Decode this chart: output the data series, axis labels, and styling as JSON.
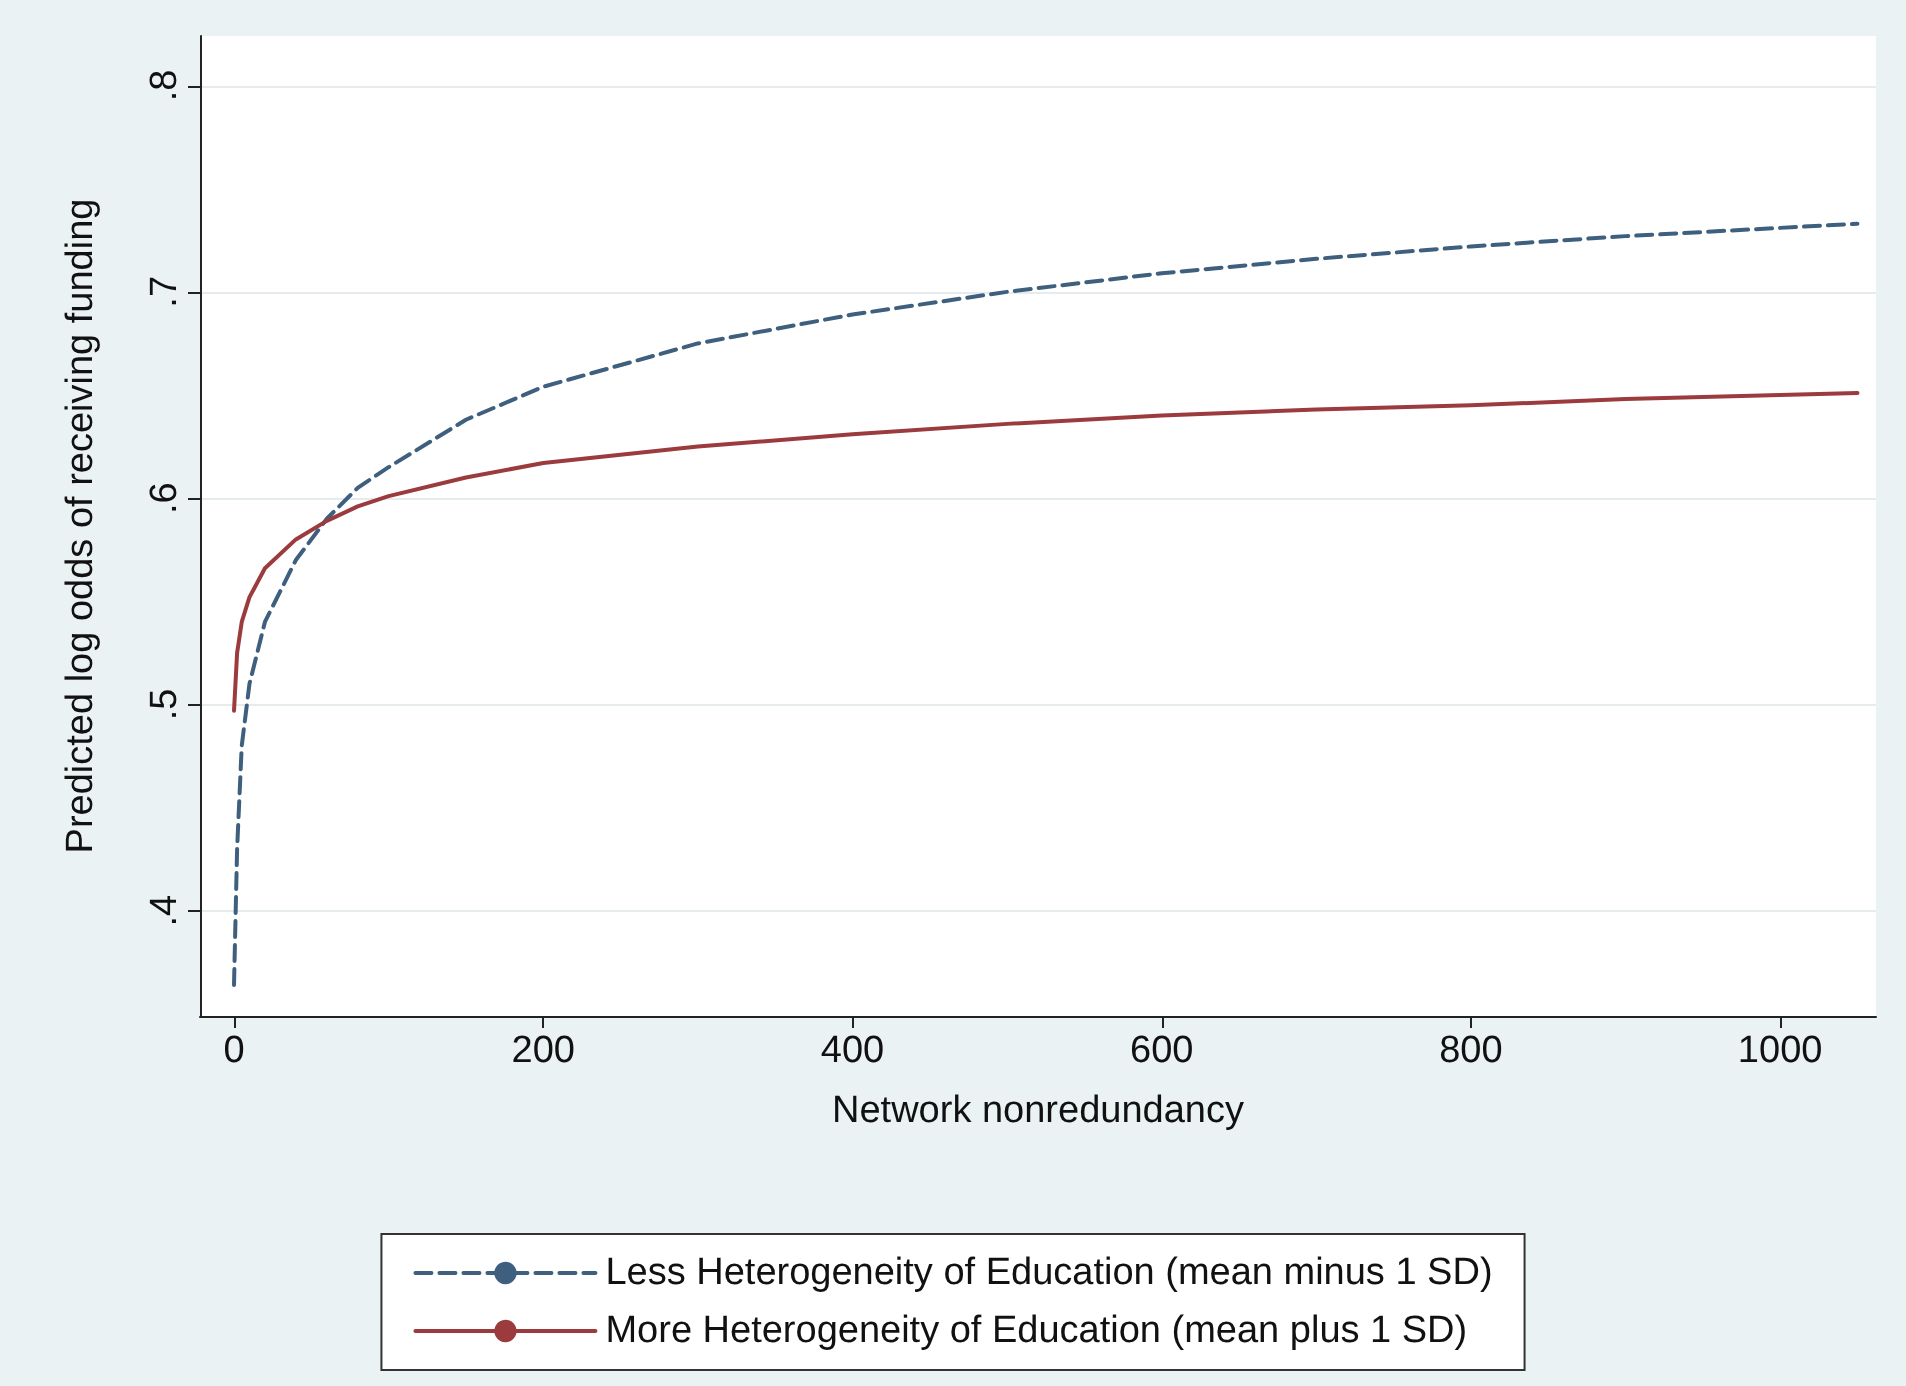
{
  "chart_data": {
    "type": "line",
    "xlabel": "Network nonredundancy",
    "ylabel": "Predicted log odds of receiving funding",
    "xlim": [
      -22,
      1062
    ],
    "ylim": [
      0.349,
      0.824
    ],
    "xticks": [
      0,
      200,
      400,
      600,
      800,
      1000
    ],
    "yticks": [
      {
        "value": 0.4,
        "label": ".4"
      },
      {
        "value": 0.5,
        "label": ".5"
      },
      {
        "value": 0.6,
        "label": ".6"
      },
      {
        "value": 0.7,
        "label": ".7"
      },
      {
        "value": 0.8,
        "label": ".8"
      }
    ],
    "grid": "y",
    "legend": "bottom",
    "marker": "none",
    "series": [
      {
        "name": "Less Heterogeneity of Education (mean minus 1 SD)",
        "color": "#3f5f7f",
        "line_style": "dashed",
        "x": [
          0,
          2,
          5,
          10,
          20,
          40,
          60,
          80,
          100,
          150,
          200,
          300,
          400,
          500,
          600,
          700,
          800,
          900,
          1000,
          1050
        ],
        "values": [
          0.364,
          0.43,
          0.48,
          0.51,
          0.54,
          0.57,
          0.59,
          0.605,
          0.615,
          0.638,
          0.654,
          0.675,
          0.689,
          0.7,
          0.709,
          0.716,
          0.722,
          0.727,
          0.731,
          0.733
        ]
      },
      {
        "name": "More Heterogeneity of Education (mean plus 1 SD)",
        "color": "#9b3b3d",
        "line_style": "solid",
        "x": [
          0,
          2,
          5,
          10,
          20,
          40,
          60,
          80,
          100,
          150,
          200,
          300,
          400,
          500,
          600,
          700,
          800,
          900,
          1000,
          1050
        ],
        "values": [
          0.497,
          0.525,
          0.54,
          0.552,
          0.566,
          0.58,
          0.589,
          0.596,
          0.601,
          0.61,
          0.617,
          0.625,
          0.631,
          0.636,
          0.64,
          0.643,
          0.645,
          0.648,
          0.65,
          0.651
        ]
      }
    ]
  }
}
